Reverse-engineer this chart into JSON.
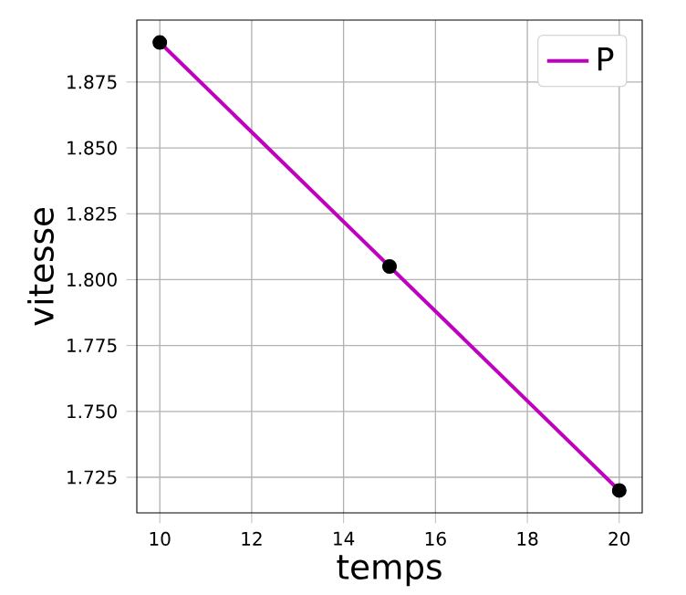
{
  "chart_data": {
    "type": "line",
    "xlabel": "temps",
    "ylabel": "vitesse",
    "series": [
      {
        "name": "P",
        "color": "#bf00bf",
        "marker": "none",
        "x": [
          10,
          15,
          20
        ],
        "values": [
          1.89,
          1.805,
          1.72
        ]
      },
      {
        "type": "scatter",
        "color": "#000000",
        "marker": "circle",
        "x": [
          10,
          15,
          20
        ],
        "values": [
          1.89,
          1.805,
          1.72
        ]
      }
    ],
    "xlim": [
      9.5,
      20.5
    ],
    "ylim": [
      1.7115,
      1.8985
    ],
    "xticks": [
      10,
      12,
      14,
      16,
      18,
      20
    ],
    "yticks": [
      {
        "value": 1.725,
        "label": "1.725"
      },
      {
        "value": 1.75,
        "label": "1.750"
      },
      {
        "value": 1.775,
        "label": "1.775"
      },
      {
        "value": 1.8,
        "label": "1.800"
      },
      {
        "value": 1.825,
        "label": "1.825"
      },
      {
        "value": 1.85,
        "label": "1.850"
      },
      {
        "value": 1.875,
        "label": "1.875"
      }
    ],
    "grid": true,
    "legend": "top right"
  }
}
